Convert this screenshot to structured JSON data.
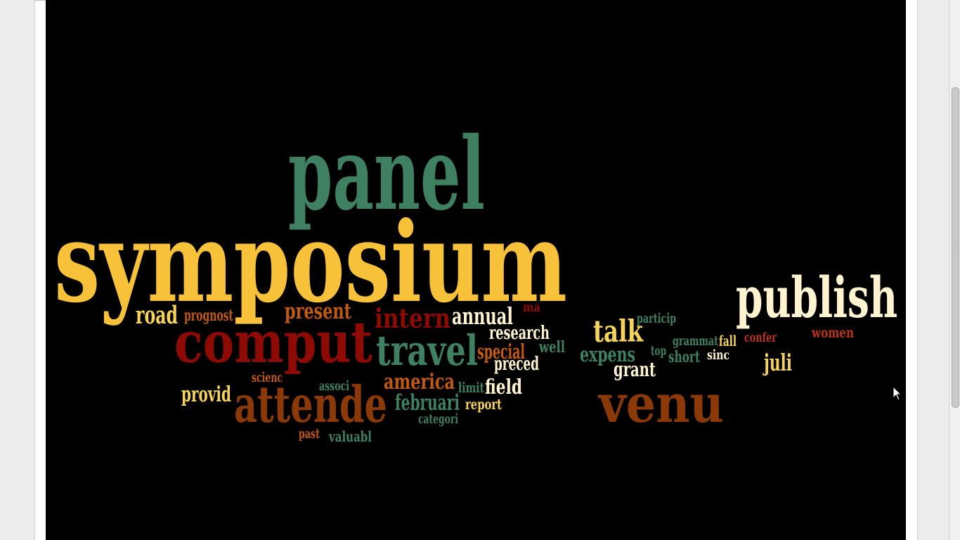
{
  "viewer": {
    "cursor_icon": "arrow-pointer-icon",
    "grip_icon": "grip-icon"
  },
  "colors": {
    "background": "#000000",
    "yellow": "#f7c23a",
    "green": "#3f8062",
    "darkred": "#8e0a05",
    "brown": "#8b3a07",
    "orange": "#c05a12",
    "cream": "#fff4cf",
    "lightyellow": "#f6d35a",
    "redorange": "#b8331a"
  },
  "words": [
    {
      "id": "panel",
      "text": "panel"
    },
    {
      "id": "symposium",
      "text": "symposium"
    },
    {
      "id": "publish",
      "text": "publish"
    },
    {
      "id": "comput",
      "text": "comput"
    },
    {
      "id": "attende",
      "text": "attende"
    },
    {
      "id": "venu",
      "text": "venu"
    },
    {
      "id": "travel",
      "text": "travel"
    },
    {
      "id": "intern",
      "text": "intern"
    },
    {
      "id": "road",
      "text": "road"
    },
    {
      "id": "prognost",
      "text": "prognost"
    },
    {
      "id": "present",
      "text": "present"
    },
    {
      "id": "annual",
      "text": "annual"
    },
    {
      "id": "ma",
      "text": "ma"
    },
    {
      "id": "research",
      "text": "research"
    },
    {
      "id": "talk",
      "text": "talk"
    },
    {
      "id": "particip",
      "text": "particip"
    },
    {
      "id": "grammat",
      "text": "grammat"
    },
    {
      "id": "fall",
      "text": "fall"
    },
    {
      "id": "confer",
      "text": "confer"
    },
    {
      "id": "women",
      "text": "women"
    },
    {
      "id": "special",
      "text": "special"
    },
    {
      "id": "well",
      "text": "well"
    },
    {
      "id": "expens",
      "text": "expens"
    },
    {
      "id": "top",
      "text": "top"
    },
    {
      "id": "short",
      "text": "short"
    },
    {
      "id": "sinc",
      "text": "sinc"
    },
    {
      "id": "juli",
      "text": "juli"
    },
    {
      "id": "preced",
      "text": "preced"
    },
    {
      "id": "grant",
      "text": "grant"
    },
    {
      "id": "scienc",
      "text": "scienc"
    },
    {
      "id": "associ",
      "text": "associ"
    },
    {
      "id": "america",
      "text": "america"
    },
    {
      "id": "limit",
      "text": "limit"
    },
    {
      "id": "field",
      "text": "field"
    },
    {
      "id": "provid",
      "text": "provid"
    },
    {
      "id": "februari",
      "text": "februari"
    },
    {
      "id": "report",
      "text": "report"
    },
    {
      "id": "categori",
      "text": "categori"
    },
    {
      "id": "past",
      "text": "past"
    },
    {
      "id": "valuabl",
      "text": "valuabl"
    }
  ]
}
